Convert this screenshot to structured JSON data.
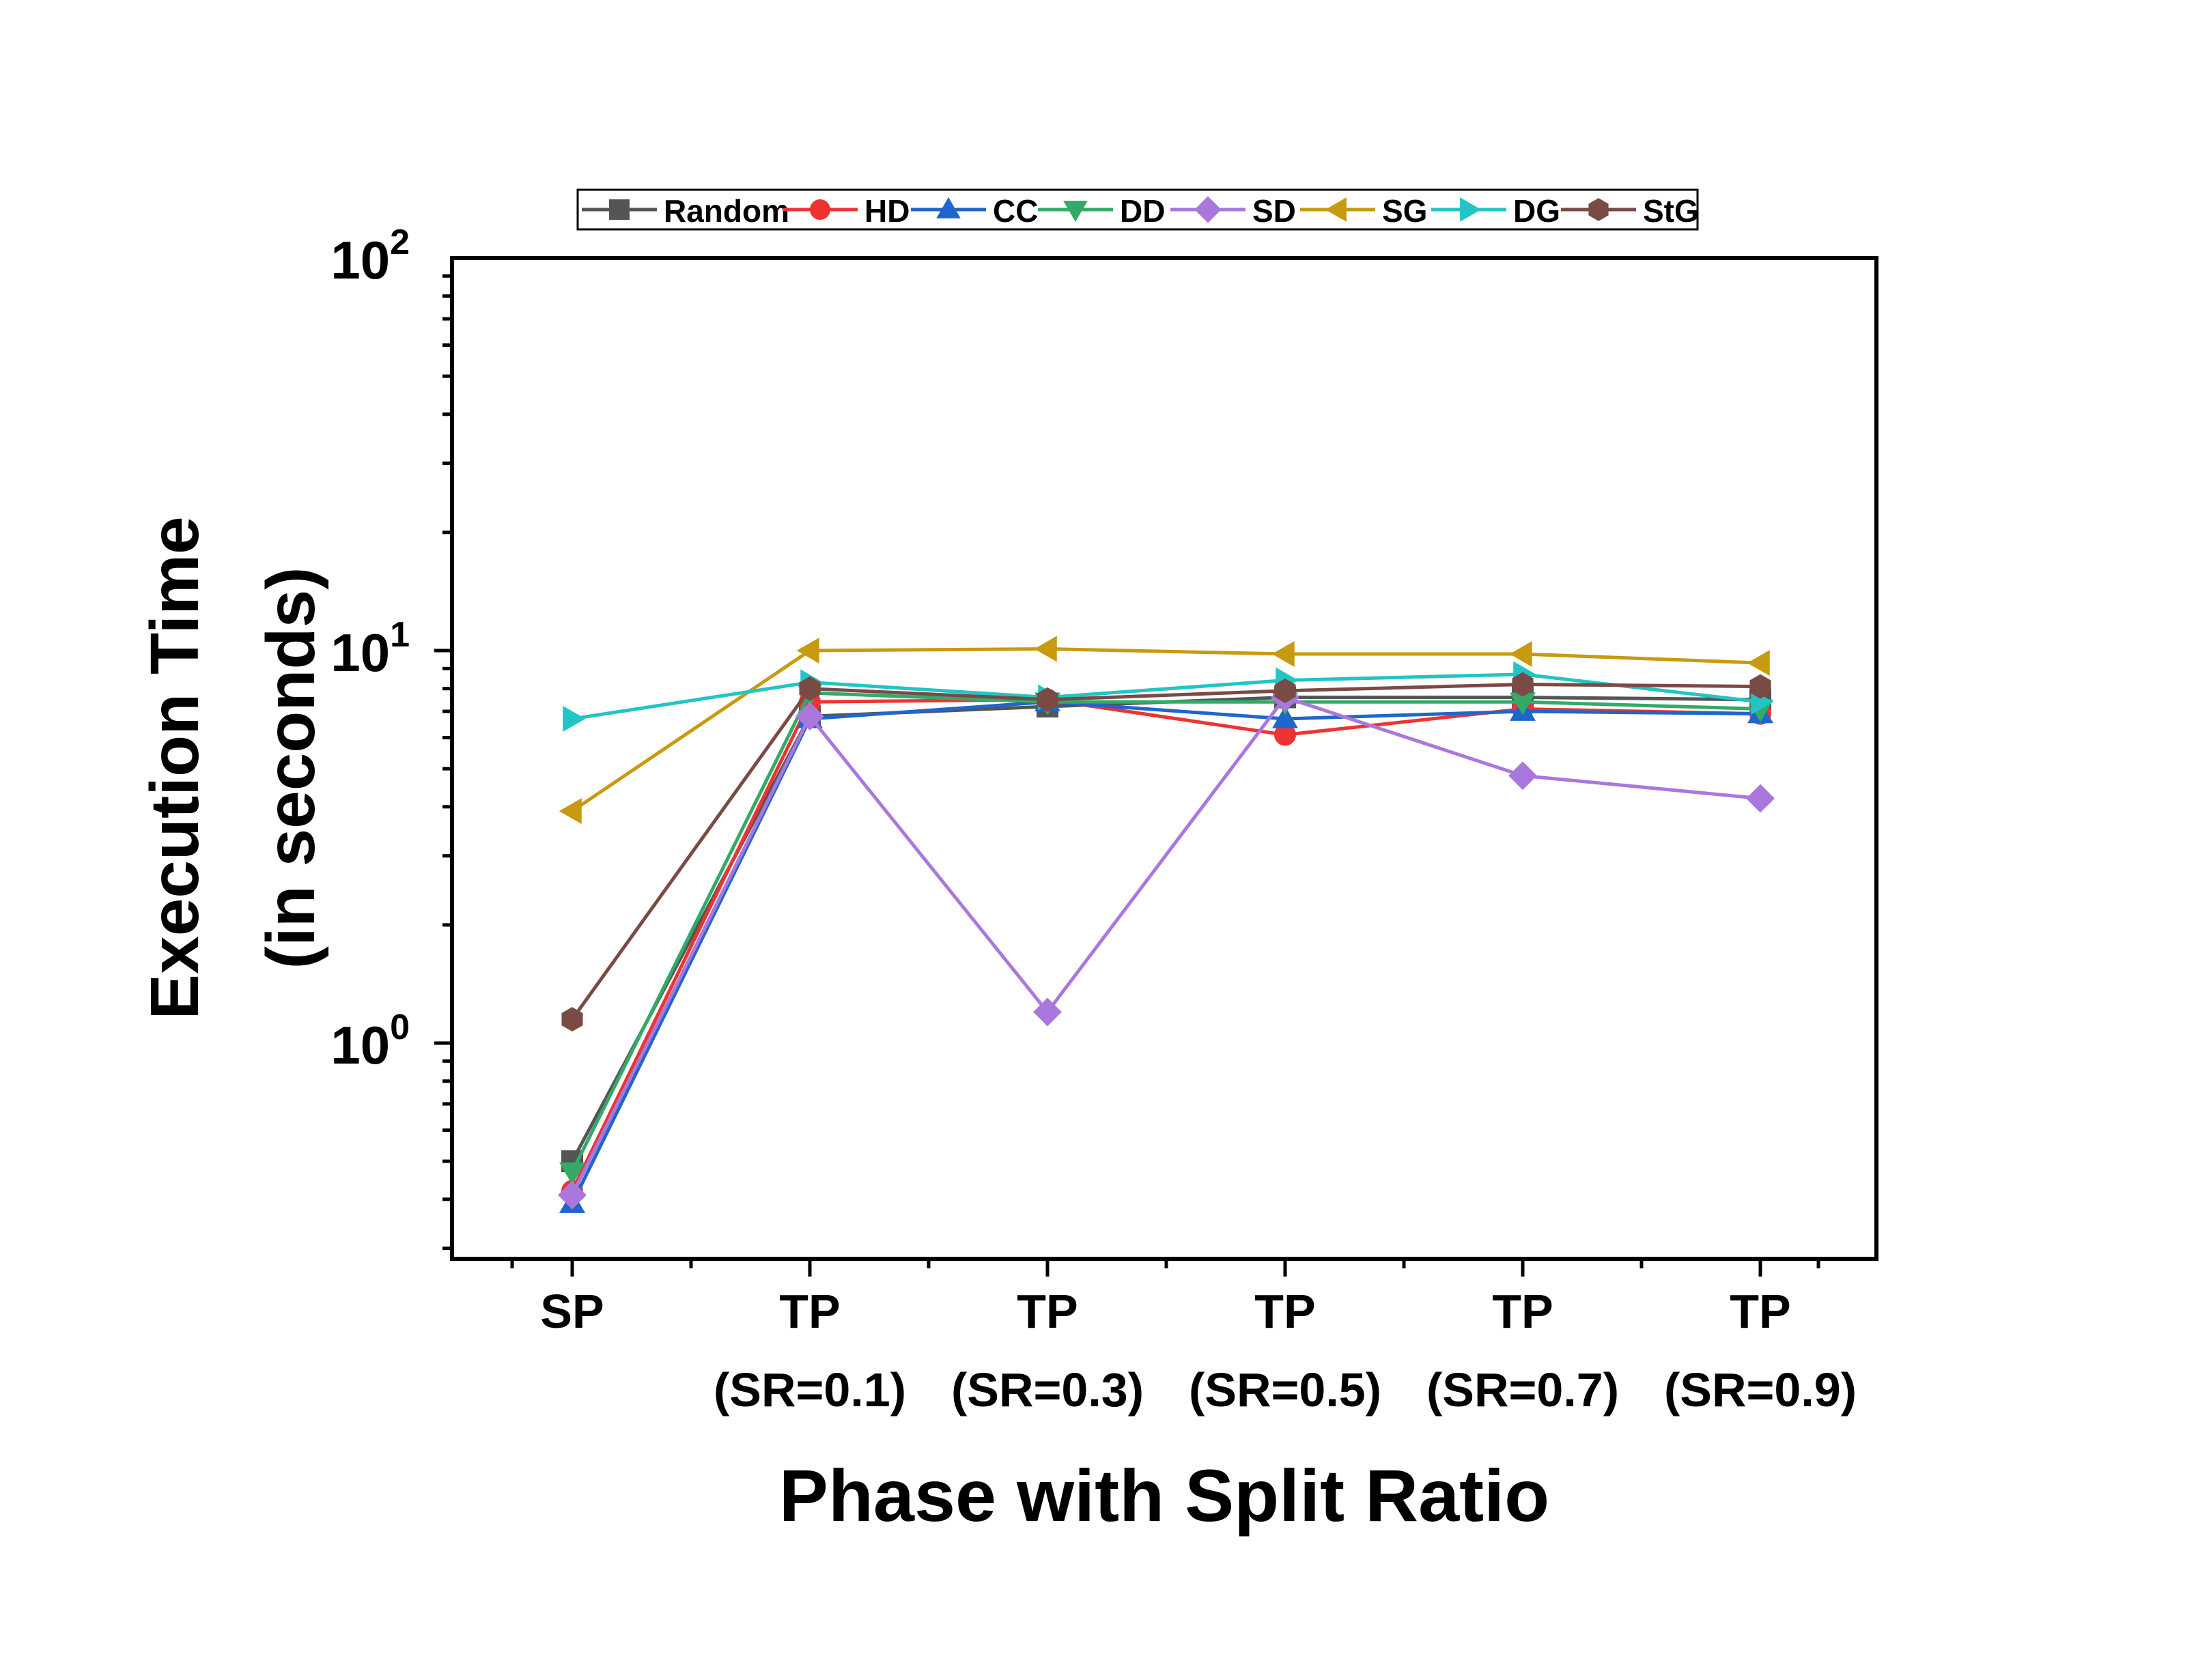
{
  "chart_data": {
    "type": "line",
    "title": "",
    "xlabel": "Phase with Split Ratio",
    "ylabel_lines": [
      "Execution Time",
      "(in seconds)"
    ],
    "yscale": "log",
    "ylim": [
      0.28,
      100
    ],
    "y_ticks": [
      {
        "base": "10",
        "exp": "0",
        "value": 1
      },
      {
        "base": "10",
        "exp": "1",
        "value": 10
      },
      {
        "base": "10",
        "exp": "2",
        "value": 100
      }
    ],
    "categories": [
      {
        "line1": "SP",
        "line2": ""
      },
      {
        "line1": "TP",
        "line2": "(SR=0.1)"
      },
      {
        "line1": "TP",
        "line2": "(SR=0.3)"
      },
      {
        "line1": "TP",
        "line2": "(SR=0.5)"
      },
      {
        "line1": "TP",
        "line2": "(SR=0.7)"
      },
      {
        "line1": "TP",
        "line2": "(SR=0.9)"
      }
    ],
    "legend_position": "top",
    "series": [
      {
        "name": "Random",
        "color": "#555555",
        "marker": "square",
        "values": [
          0.5,
          6.8,
          7.2,
          7.6,
          7.6,
          7.5
        ]
      },
      {
        "name": "HD",
        "color": "#ee3333",
        "marker": "circle",
        "values": [
          0.42,
          7.4,
          7.5,
          6.1,
          7.1,
          6.9
        ]
      },
      {
        "name": "CC",
        "color": "#1f66cc",
        "marker": "triangle-up",
        "values": [
          0.39,
          6.7,
          7.4,
          6.7,
          7.0,
          6.9
        ]
      },
      {
        "name": "DD",
        "color": "#33aa66",
        "marker": "triangle-down",
        "values": [
          0.47,
          7.8,
          7.4,
          7.4,
          7.4,
          7.1
        ]
      },
      {
        "name": "SD",
        "color": "#aa77dd",
        "marker": "diamond",
        "values": [
          0.41,
          6.8,
          1.2,
          7.6,
          4.8,
          4.2
        ]
      },
      {
        "name": "SG",
        "color": "#c89a10",
        "marker": "triangle-left",
        "values": [
          3.9,
          10.0,
          10.1,
          9.8,
          9.8,
          9.3
        ]
      },
      {
        "name": "DG",
        "color": "#22c4c4",
        "marker": "triangle-right",
        "values": [
          6.7,
          8.3,
          7.6,
          8.4,
          8.7,
          7.4
        ]
      },
      {
        "name": "StG",
        "color": "#7a4a44",
        "marker": "hexagon",
        "values": [
          1.15,
          8.0,
          7.5,
          7.9,
          8.2,
          8.1
        ]
      }
    ]
  }
}
